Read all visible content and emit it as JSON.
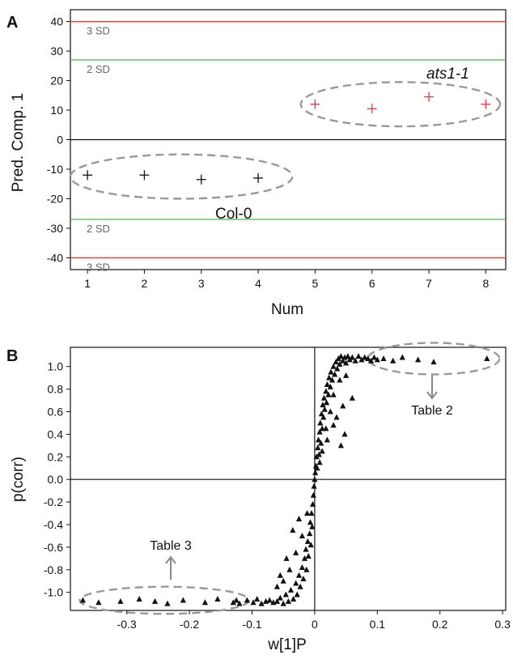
{
  "chart_data": [
    {
      "panel": "A",
      "type": "scatter",
      "xlabel": "Num",
      "ylabel": "Pred. Comp. 1",
      "xlim": [
        0.7,
        8.35
      ],
      "ylim": [
        -44,
        44
      ],
      "xticks": [
        1,
        2,
        3,
        4,
        5,
        6,
        7,
        8
      ],
      "yticks": [
        40,
        30,
        20,
        10,
        0,
        -10,
        -20,
        -30,
        -40
      ],
      "grid": false,
      "series": [
        {
          "name": "Col-0",
          "color": "#111111",
          "marker": "plus",
          "points": [
            [
              1,
              -12
            ],
            [
              2,
              -12
            ],
            [
              3,
              -13.5
            ],
            [
              4,
              -13
            ]
          ]
        },
        {
          "name": "ats1-1",
          "color": "#e23b3b",
          "marker": "plus",
          "points": [
            [
              5,
              12
            ],
            [
              6,
              10.5
            ],
            [
              7,
              14.5
            ],
            [
              8,
              12
            ]
          ]
        }
      ],
      "reference_lines": [
        {
          "y": 40,
          "label": "3 SD",
          "color": "#e23b3b"
        },
        {
          "y": 27,
          "label": "2 SD",
          "color": "#4cb84c"
        },
        {
          "y": 0,
          "label": "",
          "color": "#111111"
        },
        {
          "y": -27,
          "label": "2 SD",
          "color": "#4cb84c"
        },
        {
          "y": -40,
          "label": "3 SD",
          "color": "#e23b3b"
        }
      ],
      "group_ellipses": [
        {
          "label": "Col-0",
          "cx": 2.65,
          "cy": -12.5,
          "rx": 1.95,
          "ry": 7.5,
          "style": "italic-no"
        },
        {
          "label": "ats1-1",
          "cx": 6.5,
          "cy": 12,
          "rx": 1.75,
          "ry": 7.5
        }
      ]
    },
    {
      "panel": "B",
      "type": "scatter",
      "xlabel": "w[1]P",
      "ylabel": "p(corr)",
      "xlim": [
        -0.39,
        0.305
      ],
      "ylim": [
        -1.16,
        1.17
      ],
      "xticks": [
        -0.3,
        -0.2,
        -0.1,
        0,
        0.1,
        0.2,
        0.3
      ],
      "xtick_labels": [
        "-0.3",
        "-0.2",
        "-0.1",
        "0",
        "0.1",
        "0.2",
        "0.3"
      ],
      "yticks": [
        1.0,
        0.8,
        0.6,
        0.4,
        0.2,
        0.0,
        -0.2,
        -0.4,
        -0.6,
        -0.8,
        -1.0
      ],
      "ytick_labels": [
        "1.0",
        "0.8",
        "0.6",
        "0.4",
        "0.2",
        "0.0",
        "-0.2",
        "-0.4",
        "-0.6",
        "-0.8",
        "-1.0"
      ],
      "grid": false,
      "marker": "triangle",
      "color": "#111111",
      "points": [
        [
          -0.37,
          -1.07
        ],
        [
          -0.345,
          -1.09
        ],
        [
          -0.31,
          -1.08
        ],
        [
          -0.28,
          -1.06
        ],
        [
          -0.255,
          -1.08
        ],
        [
          -0.235,
          -1.1
        ],
        [
          -0.21,
          -1.07
        ],
        [
          -0.175,
          -1.09
        ],
        [
          -0.155,
          -1.06
        ],
        [
          -0.13,
          -1.09
        ],
        [
          -0.125,
          -1.07
        ],
        [
          -0.12,
          -1.1
        ],
        [
          -0.108,
          -1.07
        ],
        [
          -0.098,
          -1.09
        ],
        [
          -0.092,
          -1.06
        ],
        [
          -0.085,
          -1.1
        ],
        [
          -0.078,
          -1.08
        ],
        [
          -0.072,
          -1.07
        ],
        [
          -0.066,
          -1.09
        ],
        [
          -0.06,
          -1.08
        ],
        [
          -0.055,
          -1.05
        ],
        [
          -0.05,
          -1.1
        ],
        [
          -0.046,
          -1.02
        ],
        [
          -0.042,
          -1.08
        ],
        [
          -0.038,
          -0.98
        ],
        [
          -0.034,
          -1.06
        ],
        [
          -0.03,
          -0.92
        ],
        [
          -0.028,
          -1.02
        ],
        [
          -0.025,
          -0.85
        ],
        [
          -0.023,
          -0.95
        ],
        [
          -0.02,
          -0.78
        ],
        [
          -0.018,
          -0.88
        ],
        [
          -0.016,
          -0.7
        ],
        [
          -0.014,
          -0.62
        ],
        [
          -0.013,
          -0.8
        ],
        [
          -0.011,
          -0.55
        ],
        [
          -0.01,
          -0.68
        ],
        [
          -0.008,
          -0.48
        ],
        [
          -0.007,
          -0.38
        ],
        [
          -0.006,
          -0.58
        ],
        [
          -0.005,
          -0.3
        ],
        [
          -0.004,
          -0.42
        ],
        [
          -0.003,
          -0.22
        ],
        [
          -0.002,
          -0.14
        ],
        [
          -0.001,
          -0.06
        ],
        [
          0.0,
          0.0
        ],
        [
          0.001,
          0.06
        ],
        [
          0.002,
          0.12
        ],
        [
          0.003,
          0.2
        ],
        [
          0.004,
          0.1
        ],
        [
          0.005,
          0.28
        ],
        [
          0.006,
          0.35
        ],
        [
          0.007,
          0.22
        ],
        [
          0.008,
          0.42
        ],
        [
          0.009,
          0.5
        ],
        [
          0.01,
          0.32
        ],
        [
          0.011,
          0.58
        ],
        [
          0.012,
          0.45
        ],
        [
          0.013,
          0.66
        ],
        [
          0.014,
          0.55
        ],
        [
          0.015,
          0.72
        ],
        [
          0.016,
          0.62
        ],
        [
          0.018,
          0.78
        ],
        [
          0.019,
          0.68
        ],
        [
          0.02,
          0.84
        ],
        [
          0.022,
          0.75
        ],
        [
          0.023,
          0.9
        ],
        [
          0.025,
          0.82
        ],
        [
          0.026,
          0.95
        ],
        [
          0.028,
          0.88
        ],
        [
          0.03,
          1.0
        ],
        [
          0.032,
          0.93
        ],
        [
          0.034,
          1.04
        ],
        [
          0.036,
          0.98
        ],
        [
          0.038,
          1.07
        ],
        [
          0.04,
          1.02
        ],
        [
          0.042,
          1.09
        ],
        [
          0.045,
          1.05
        ],
        [
          0.048,
          1.08
        ],
        [
          0.05,
          1.03
        ],
        [
          0.053,
          1.09
        ],
        [
          0.056,
          1.06
        ],
        [
          0.06,
          1.08
        ],
        [
          0.065,
          1.05
        ],
        [
          0.07,
          1.09
        ],
        [
          0.075,
          1.06
        ],
        [
          0.08,
          1.08
        ],
        [
          0.085,
          1.07
        ],
        [
          0.09,
          1.05
        ],
        [
          0.095,
          1.08
        ],
        [
          0.1,
          1.06
        ],
        [
          0.11,
          1.07
        ],
        [
          0.125,
          1.05
        ],
        [
          0.14,
          1.08
        ],
        [
          0.165,
          1.06
        ],
        [
          0.19,
          1.04
        ],
        [
          0.275,
          1.07
        ],
        [
          0.018,
          0.45
        ],
        [
          0.025,
          0.6
        ],
        [
          0.03,
          0.75
        ],
        [
          0.035,
          0.55
        ],
        [
          0.04,
          0.88
        ],
        [
          0.045,
          0.65
        ],
        [
          0.05,
          0.92
        ],
        [
          0.06,
          0.72
        ],
        [
          0.012,
          0.25
        ],
        [
          0.008,
          0.15
        ],
        [
          0.048,
          0.4
        ],
        [
          0.042,
          0.3
        ],
        [
          0.02,
          0.35
        ],
        [
          0.03,
          0.48
        ],
        [
          -0.012,
          -0.3
        ],
        [
          -0.02,
          -0.5
        ],
        [
          -0.03,
          -0.65
        ],
        [
          -0.04,
          -0.8
        ],
        [
          -0.05,
          -0.9
        ],
        [
          -0.035,
          -0.45
        ],
        [
          -0.025,
          -0.35
        ],
        [
          -0.045,
          -0.7
        ],
        [
          -0.055,
          -0.85
        ],
        [
          -0.06,
          -0.95
        ]
      ],
      "annotations": [
        {
          "text": "Table 2",
          "x": 0.19,
          "y": 0.62
        },
        {
          "text": "Table 3",
          "x": -0.235,
          "y": -0.55
        }
      ],
      "group_ellipses": [
        {
          "cx": 0.19,
          "cy": 1.07,
          "rx": 0.105,
          "ry": 0.14
        },
        {
          "cx": -0.24,
          "cy": -1.07,
          "rx": 0.135,
          "ry": 0.12
        }
      ]
    }
  ],
  "labels": {
    "panel_a": "A",
    "panel_b": "B",
    "sd3": "3 SD",
    "sd2": "2 SD",
    "col0": "Col-0",
    "ats": "ats1-1",
    "table2": "Table 2",
    "table3": "Table 3"
  }
}
